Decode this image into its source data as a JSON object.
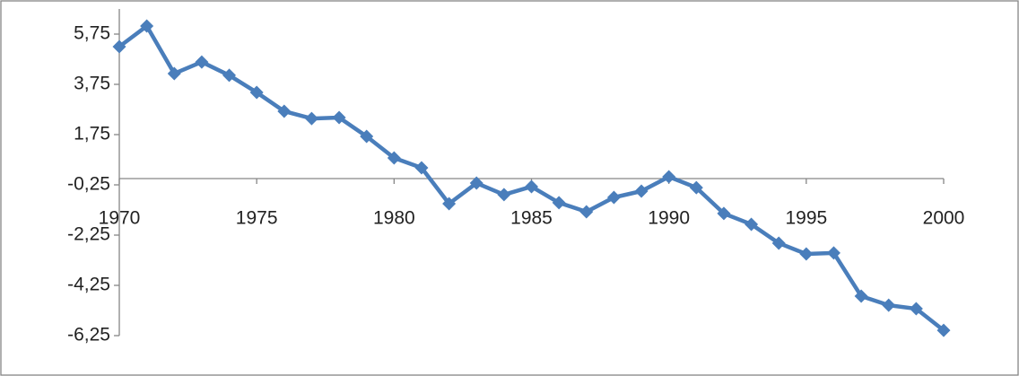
{
  "chart_data": {
    "type": "line",
    "x": [
      1970,
      1971,
      1972,
      1973,
      1974,
      1975,
      1976,
      1977,
      1978,
      1979,
      1980,
      1981,
      1982,
      1983,
      1984,
      1985,
      1986,
      1987,
      1988,
      1989,
      1990,
      1991,
      1992,
      1993,
      1994,
      1995,
      1996,
      1997,
      1998,
      1999,
      2000
    ],
    "series": [
      {
        "color": "#4a7ebb",
        "values": [
          5.25,
          6.07,
          4.18,
          4.64,
          4.11,
          3.43,
          2.68,
          2.39,
          2.43,
          1.68,
          0.82,
          0.43,
          -1.0,
          -0.18,
          -0.64,
          -0.32,
          -0.96,
          -1.32,
          -0.75,
          -0.5,
          0.07,
          -0.36,
          -1.39,
          -1.82,
          -2.57,
          -3.0,
          -2.96,
          -4.68,
          -5.04,
          -5.18,
          -6.04
        ]
      }
    ],
    "xlim": [
      1970,
      2000
    ],
    "xticks": [
      1970,
      1975,
      1980,
      1985,
      1990,
      1995,
      2000
    ],
    "ylim": [
      -6.25,
      6.75
    ],
    "yticks": [
      {
        "value": -6.25,
        "label": "-6,25"
      },
      {
        "value": -4.25,
        "label": "-4,25"
      },
      {
        "value": -2.25,
        "label": "-2,25"
      },
      {
        "value": -0.25,
        "label": "-0,25"
      },
      {
        "value": 1.75,
        "label": "1,75"
      },
      {
        "value": 3.75,
        "label": "3,75"
      },
      {
        "value": 5.75,
        "label": "5,75"
      }
    ],
    "marker": "diamond"
  }
}
